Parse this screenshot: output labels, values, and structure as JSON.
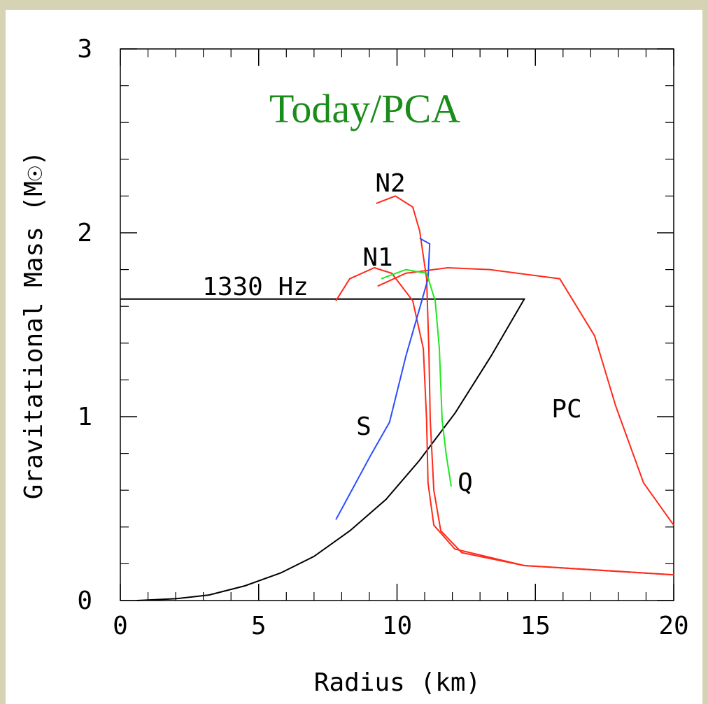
{
  "chart_data": {
    "type": "line",
    "annotation": "Today/PCA",
    "x_label": "Radius (km)",
    "y_label": "Gravitational Mass (M☉)",
    "xlim": [
      0,
      20
    ],
    "ylim": [
      0,
      3
    ],
    "xticks": [
      0,
      5,
      10,
      15,
      20
    ],
    "yticks": [
      0,
      1,
      2,
      3
    ],
    "grid": false,
    "series": [
      {
        "name": "1330 Hz",
        "color": "#000000",
        "x": [
          0.6,
          2,
          3.2,
          4.5,
          5.8,
          7,
          8.3,
          9.6,
          10.8,
          12.1,
          13.4,
          14.6,
          0
        ],
        "values": [
          0,
          0.01,
          0.03,
          0.08,
          0.15,
          0.24,
          0.38,
          0.55,
          0.76,
          1.02,
          1.33,
          1.64,
          1.64
        ]
      },
      {
        "name": "N2",
        "color": "#ff2a1a",
        "x": [
          9.25,
          9.94,
          10.57,
          10.82,
          11.07,
          11.15,
          11.2,
          11.33,
          11.58,
          12.34,
          14.6,
          20
        ],
        "values": [
          2.16,
          2.2,
          2.14,
          2.01,
          1.75,
          1.37,
          0.98,
          0.6,
          0.38,
          0.26,
          0.19,
          0.14
        ]
      },
      {
        "name": "N1",
        "color": "#ff2a1a",
        "x": [
          7.79,
          8.29,
          9.18,
          9.81,
          10.57,
          10.95,
          11.07,
          11.12,
          11.33,
          12.09,
          14.6,
          20
        ],
        "values": [
          1.63,
          1.75,
          1.81,
          1.78,
          1.63,
          1.37,
          0.98,
          0.64,
          0.41,
          0.28,
          0.19,
          0.14
        ]
      },
      {
        "name": "PC",
        "color": "#ff2a1a",
        "x": [
          9.3,
          10.32,
          11.83,
          13.35,
          15.88,
          17.14,
          17.9,
          18.91,
          20
        ],
        "values": [
          1.71,
          1.78,
          1.81,
          1.8,
          1.75,
          1.44,
          1.06,
          0.64,
          0.41
        ]
      },
      {
        "name": "S",
        "color": "#2a4cff",
        "x": [
          7.79,
          9.05,
          9.73,
          10.32,
          10.82,
          11.12,
          11.18,
          10.82
        ],
        "values": [
          0.44,
          0.79,
          0.97,
          1.33,
          1.59,
          1.75,
          1.94,
          1.97
        ]
      },
      {
        "name": "Q",
        "color": "#22e622",
        "x": [
          9.43,
          10.32,
          11.07,
          11.38,
          11.53,
          11.63,
          11.78,
          11.96
        ],
        "values": [
          1.75,
          1.8,
          1.78,
          1.63,
          1.37,
          0.98,
          0.79,
          0.62
        ]
      }
    ]
  }
}
